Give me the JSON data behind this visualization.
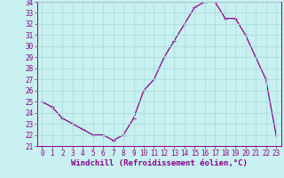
{
  "x": [
    0,
    1,
    2,
    3,
    4,
    5,
    6,
    7,
    8,
    9,
    10,
    11,
    12,
    13,
    14,
    15,
    16,
    17,
    18,
    19,
    20,
    21,
    22,
    23
  ],
  "y": [
    25.0,
    24.5,
    23.5,
    23.0,
    22.5,
    22.0,
    22.0,
    21.5,
    22.0,
    23.5,
    26.0,
    27.0,
    29.0,
    30.5,
    32.0,
    33.5,
    34.0,
    34.0,
    32.5,
    32.5,
    31.0,
    29.0,
    27.0,
    22.0
  ],
  "line_color": "#8B008B",
  "marker": "+",
  "bg_color": "#c8f0f0",
  "grid_color": "#aadddd",
  "xlabel": "Windchill (Refroidissement éolien,°C)",
  "xlabel_color": "#8B008B",
  "tick_color": "#8B008B",
  "ylim": [
    21,
    34
  ],
  "xlim": [
    -0.5,
    23.5
  ],
  "yticks": [
    21,
    22,
    23,
    24,
    25,
    26,
    27,
    28,
    29,
    30,
    31,
    32,
    33,
    34
  ],
  "xticks": [
    0,
    1,
    2,
    3,
    4,
    5,
    6,
    7,
    8,
    9,
    10,
    11,
    12,
    13,
    14,
    15,
    16,
    17,
    18,
    19,
    20,
    21,
    22,
    23
  ],
  "tick_fontsize": 5.5,
  "label_fontsize": 6.5
}
